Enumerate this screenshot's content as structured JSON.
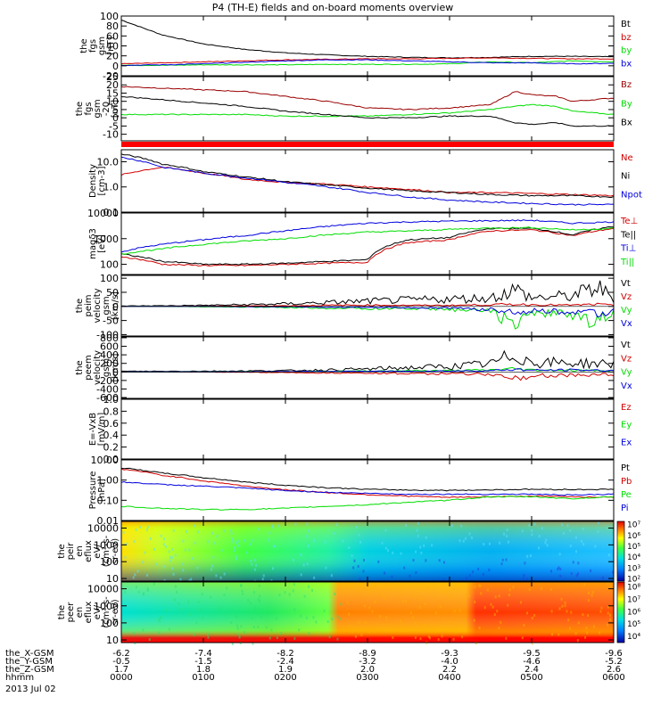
{
  "title": "P4 (TH-E) fields and on-board moments overview",
  "colors": {
    "black": "#000000",
    "red": "#d00000",
    "green": "#00dd00",
    "blue": "#0000dd",
    "darkred": "#990000",
    "frame": "#000000"
  },
  "chart_data": [
    {
      "id": "fgs-mag",
      "type": "line",
      "ylabel": [
        "the",
        "fgs",
        "gsm",
        "[nT]"
      ],
      "yticks": [
        "100",
        "80",
        "60",
        "40",
        "20",
        "0",
        "-20"
      ],
      "ylim": [
        -20,
        100
      ],
      "legend": [
        {
          "label": "Bt",
          "color": "#000000"
        },
        {
          "label": "bz",
          "color": "#d00000"
        },
        {
          "label": "by",
          "color": "#00dd00"
        },
        {
          "label": "bx",
          "color": "#0000dd"
        }
      ],
      "x": [
        0,
        0.5,
        1,
        1.5,
        2,
        2.5,
        3,
        3.5,
        4,
        4.5,
        5,
        5.5,
        6
      ],
      "series": [
        {
          "name": "Bt",
          "color": "#000000",
          "values": [
            92,
            62,
            44,
            33,
            26,
            22,
            19,
            17,
            16,
            17,
            19,
            19,
            18
          ]
        },
        {
          "name": "bz",
          "color": "#d00000",
          "values": [
            4,
            6,
            8,
            10,
            12,
            13,
            14,
            14,
            15,
            16,
            15,
            14,
            14
          ]
        },
        {
          "name": "by",
          "color": "#00dd00",
          "values": [
            1,
            1,
            2,
            2,
            2,
            3,
            3,
            3,
            4,
            8,
            6,
            10,
            8
          ]
        },
        {
          "name": "bx",
          "color": "#0000dd",
          "values": [
            1,
            2,
            4,
            7,
            10,
            12,
            12,
            10,
            8,
            6,
            6,
            4,
            5
          ]
        }
      ]
    },
    {
      "id": "fgs-components",
      "type": "line",
      "ylabel": [
        "the",
        "fgs",
        "gsm",
        "-20",
        "[nT]"
      ],
      "yticks": [
        "25",
        "20",
        "15",
        "10",
        "5",
        "0",
        "-5",
        "-10"
      ],
      "ylim": [
        -14,
        25
      ],
      "legend": [
        {
          "label": "Bz",
          "color": "#990000"
        },
        {
          "label": "By",
          "color": "#00dd00"
        },
        {
          "label": "Bx",
          "color": "#000000"
        }
      ],
      "x": [
        0,
        0.5,
        1,
        1.5,
        2,
        2.5,
        3,
        3.5,
        4,
        4.5,
        4.8,
        5,
        5.3,
        5.5,
        6
      ],
      "series": [
        {
          "name": "Bz",
          "color": "#990000",
          "values": [
            19,
            18,
            17,
            16,
            13,
            10,
            6,
            5,
            6,
            8,
            16,
            14,
            13,
            10,
            12
          ]
        },
        {
          "name": "By",
          "color": "#00dd00",
          "values": [
            2,
            2,
            2,
            2,
            1,
            1,
            1,
            2,
            3,
            5,
            7,
            8,
            7,
            4,
            2
          ]
        },
        {
          "name": "Bx",
          "color": "#000000",
          "values": [
            13,
            11,
            9,
            7,
            4,
            2,
            0,
            0,
            1,
            1,
            -3,
            -4,
            -3,
            -5,
            -5
          ]
        }
      ]
    },
    {
      "id": "density",
      "type": "line",
      "ylabel": [
        "Density",
        "[cm-3]"
      ],
      "yticks": [
        "10.0",
        "1.0",
        "0.1"
      ],
      "ylim": [
        0.1,
        30
      ],
      "scale": "log",
      "legend": [
        {
          "label": "Ne",
          "color": "#d00000"
        },
        {
          "label": "Ni",
          "color": "#000000"
        },
        {
          "label": "Npot",
          "color": "#0000dd"
        }
      ],
      "x": [
        0,
        0.5,
        1,
        1.5,
        2,
        2.5,
        3,
        3.5,
        4,
        4.5,
        5,
        5.5,
        6
      ],
      "series": [
        {
          "name": "Ne",
          "color": "#d00000",
          "values": [
            3,
            6,
            3.5,
            2,
            1.5,
            1.3,
            1,
            0.8,
            0.6,
            0.6,
            0.55,
            0.5,
            0.45
          ]
        },
        {
          "name": "Ni",
          "color": "#000000",
          "values": [
            20,
            8,
            4,
            2.5,
            1.6,
            1.2,
            0.9,
            0.7,
            0.6,
            0.5,
            0.45,
            0.45,
            0.4
          ]
        },
        {
          "name": "Npot",
          "color": "#0000dd",
          "values": [
            15,
            6,
            3.5,
            2.3,
            1.5,
            1.0,
            0.6,
            0.4,
            0.3,
            0.25,
            0.22,
            0.2,
            0.2
          ]
        }
      ]
    },
    {
      "id": "temperature",
      "type": "line",
      "ylabel": [
        "magδ3",
        "[eV]"
      ],
      "yticks": [
        "10000",
        "1000",
        "100"
      ],
      "ylim": [
        40,
        10000
      ],
      "scale": "log",
      "legend": [
        {
          "label": "Te⊥",
          "color": "#d00000"
        },
        {
          "label": "Te||",
          "color": "#000000"
        },
        {
          "label": "Ti⊥",
          "color": "#0000dd"
        },
        {
          "label": "Ti||",
          "color": "#00dd00"
        }
      ],
      "x": [
        0,
        0.5,
        1,
        1.5,
        2,
        2.5,
        3,
        3.5,
        4,
        4.5,
        5,
        5.5,
        6
      ],
      "series": [
        {
          "name": "Te⊥",
          "color": "#d00000",
          "values": [
            200,
            100,
            90,
            90,
            100,
            110,
            120,
            700,
            900,
            2000,
            2200,
            1300,
            2500
          ]
        },
        {
          "name": "Te||",
          "color": "#000000",
          "values": [
            250,
            130,
            100,
            100,
            110,
            130,
            150,
            900,
            1100,
            2500,
            2500,
            1400,
            3000
          ]
        },
        {
          "name": "Ti⊥",
          "color": "#0000dd",
          "values": [
            300,
            600,
            900,
            1300,
            2000,
            3000,
            4000,
            4500,
            4800,
            5000,
            5200,
            4000,
            4500
          ]
        },
        {
          "name": "Ti||",
          "color": "#00dd00",
          "values": [
            250,
            400,
            600,
            800,
            1000,
            1400,
            1800,
            2000,
            2300,
            2600,
            2700,
            2200,
            2500
          ]
        }
      ]
    },
    {
      "id": "peim-velocity",
      "type": "line",
      "ylabel": [
        "the",
        "peim",
        "velocity",
        "gsm",
        "[km/s]"
      ],
      "yticks": [
        "100",
        "50",
        "0",
        "-50",
        "-100"
      ],
      "ylim": [
        -105,
        110
      ],
      "legend": [
        {
          "label": "Vt",
          "color": "#000000"
        },
        {
          "label": "Vz",
          "color": "#d00000"
        },
        {
          "label": "Vy",
          "color": "#00dd00"
        },
        {
          "label": "Vx",
          "color": "#0000dd"
        }
      ],
      "x": [
        0,
        0.5,
        1,
        1.5,
        2,
        2.5,
        3,
        3.5,
        4,
        4.5,
        4.8,
        5,
        5.5,
        5.8,
        6
      ],
      "series": [
        {
          "name": "Vt",
          "color": "#000000",
          "values": [
            2,
            3,
            5,
            8,
            12,
            18,
            25,
            30,
            35,
            40,
            80,
            40,
            50,
            90,
            40
          ]
        },
        {
          "name": "Vz",
          "color": "#d00000",
          "values": [
            0,
            0,
            1,
            2,
            3,
            5,
            6,
            5,
            5,
            8,
            10,
            8,
            6,
            10,
            5
          ]
        },
        {
          "name": "Vy",
          "color": "#00dd00",
          "values": [
            0,
            0,
            -2,
            -3,
            -5,
            -8,
            -10,
            -10,
            -15,
            -20,
            -90,
            -30,
            -40,
            -80,
            -30
          ]
        },
        {
          "name": "Vx",
          "color": "#0000dd",
          "values": [
            0,
            0,
            0,
            -1,
            -2,
            -3,
            -5,
            -5,
            -8,
            -15,
            -30,
            -20,
            -25,
            -40,
            -20
          ]
        }
      ]
    },
    {
      "id": "peem-velocity",
      "type": "line",
      "ylabel": [
        "the",
        "peem",
        "velocity",
        "gsm",
        "[km/s]"
      ],
      "yticks": [
        "800",
        "600",
        "400",
        "200",
        "0",
        "-200",
        "-400",
        "-600"
      ],
      "ylim": [
        -620,
        820
      ],
      "legend": [
        {
          "label": "Vt",
          "color": "#000000"
        },
        {
          "label": "Vz",
          "color": "#d00000"
        },
        {
          "label": "Vy",
          "color": "#00dd00"
        },
        {
          "label": "Vx",
          "color": "#0000dd"
        }
      ],
      "x": [
        0,
        0.5,
        1,
        1.5,
        2,
        2.5,
        3,
        3.5,
        4,
        4.5,
        4.8,
        5,
        5.5,
        6
      ],
      "series": [
        {
          "name": "Vt",
          "color": "#000000",
          "values": [
            20,
            20,
            25,
            30,
            40,
            60,
            90,
            130,
            170,
            250,
            550,
            300,
            280,
            250
          ]
        },
        {
          "name": "Vz",
          "color": "#d00000",
          "values": [
            0,
            0,
            -5,
            -10,
            -20,
            -30,
            -40,
            -50,
            -60,
            -80,
            -200,
            -120,
            -100,
            -90
          ]
        },
        {
          "name": "Vy",
          "color": "#00dd00",
          "values": [
            0,
            0,
            5,
            10,
            10,
            20,
            30,
            40,
            40,
            60,
            100,
            60,
            50,
            40
          ]
        },
        {
          "name": "Vx",
          "color": "#0000dd",
          "values": [
            0,
            0,
            0,
            5,
            10,
            15,
            20,
            20,
            30,
            40,
            80,
            50,
            60,
            40
          ]
        }
      ]
    },
    {
      "id": "efield",
      "type": "line",
      "ylabel": [
        "E=-VxB",
        "[mV/m]"
      ],
      "yticks": [
        "1.0",
        "0.8",
        "0.6",
        "0.4",
        "0.2",
        "0.0"
      ],
      "ylim": [
        0,
        1
      ],
      "legend": [
        {
          "label": "Ez",
          "color": "#d00000"
        },
        {
          "label": "Ey",
          "color": "#00dd00"
        },
        {
          "label": "Ex",
          "color": "#0000dd"
        }
      ],
      "x": [],
      "series": []
    },
    {
      "id": "pressure",
      "type": "line",
      "ylabel": [
        "Pressure",
        "[nPa]"
      ],
      "yticks": [
        "10.00",
        "1.00",
        "0.10",
        "0.01"
      ],
      "ylim": [
        0.01,
        10
      ],
      "scale": "log",
      "legend": [
        {
          "label": "Pt",
          "color": "#000000"
        },
        {
          "label": "Pb",
          "color": "#d00000"
        },
        {
          "label": "Pe",
          "color": "#00dd00"
        },
        {
          "label": "Pi",
          "color": "#0000dd"
        }
      ],
      "x": [
        0,
        0.5,
        1,
        1.5,
        2,
        2.5,
        3,
        3.5,
        4,
        4.5,
        5,
        5.5,
        6
      ],
      "series": [
        {
          "name": "Pt",
          "color": "#000000",
          "values": [
            4,
            2.2,
            1.3,
            0.8,
            0.55,
            0.42,
            0.35,
            0.32,
            0.31,
            0.33,
            0.35,
            0.34,
            0.35
          ]
        },
        {
          "name": "Pb",
          "color": "#d00000",
          "values": [
            3.5,
            1.7,
            0.9,
            0.5,
            0.33,
            0.24,
            0.19,
            0.16,
            0.14,
            0.15,
            0.16,
            0.15,
            0.14
          ]
        },
        {
          "name": "Pe",
          "color": "#00dd00",
          "values": [
            0.05,
            0.04,
            0.035,
            0.035,
            0.04,
            0.05,
            0.06,
            0.08,
            0.1,
            0.15,
            0.15,
            0.12,
            0.15
          ]
        },
        {
          "name": "Pi",
          "color": "#0000dd",
          "values": [
            0.8,
            0.6,
            0.5,
            0.4,
            0.3,
            0.25,
            0.22,
            0.2,
            0.2,
            0.2,
            0.2,
            0.18,
            0.2
          ]
        }
      ]
    },
    {
      "id": "peir-spectrogram",
      "type": "heatmap",
      "ylabel": [
        "the",
        "peir",
        "en",
        "eflux",
        "eV/",
        "(cm²-s-",
        "sr-eV)"
      ],
      "yticks": [
        "10000",
        "1000",
        "100",
        "10"
      ],
      "ylim": [
        7,
        25000
      ],
      "colorbar": {
        "ticks": [
          "10⁷",
          "10⁶",
          "10⁵",
          "10⁴",
          "10³",
          "10²"
        ],
        "range_exp": [
          1.8,
          7.3
        ]
      }
    },
    {
      "id": "peer-spectrogram",
      "type": "heatmap",
      "ylabel": [
        "the",
        "peer",
        "en",
        "eflux",
        "eV/",
        "(cm²-s-",
        "sr-eV)"
      ],
      "yticks": [
        "10000",
        "1000",
        "100",
        "10"
      ],
      "ylim": [
        7,
        25000
      ],
      "colorbar": {
        "ticks": [
          "10⁸",
          "10⁷",
          "10⁶",
          "10⁵",
          "10⁴"
        ],
        "range_exp": [
          3.5,
          8.4
        ]
      }
    }
  ],
  "time_axis": {
    "xlim": [
      0,
      6
    ],
    "rows": [
      {
        "label": "the_X-GSM",
        "values": [
          "-6.2",
          "-7.4",
          "-8.2",
          "-8.9",
          "-9.3",
          "-9.5",
          "-9.6"
        ]
      },
      {
        "label": "the_Y-GSM",
        "values": [
          "-0.5",
          "-1.5",
          "-2.4",
          "-3.2",
          "-4.0",
          "-4.6",
          "-5.2"
        ]
      },
      {
        "label": "the_Z-GSM",
        "values": [
          "1.7",
          "1.8",
          "1.9",
          "2.0",
          "2.2",
          "2.4",
          "2.6"
        ]
      },
      {
        "label": "hhmm",
        "values": [
          "0000",
          "0100",
          "0200",
          "0300",
          "0400",
          "0500",
          "0600"
        ]
      }
    ],
    "date": "2013 Jul 02"
  }
}
